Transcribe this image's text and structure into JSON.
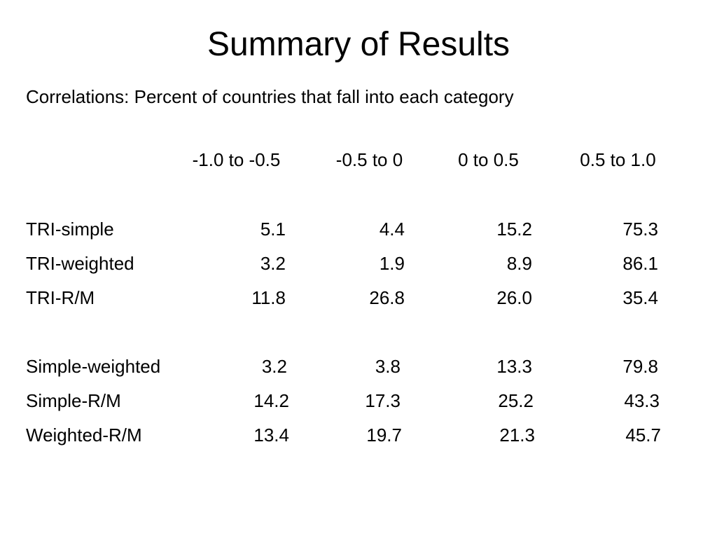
{
  "title": "Summary of Results",
  "subtitle": "Correlations: Percent of countries that fall into each category",
  "columns": [
    "-1.0 to -0.5",
    "-0.5 to 0",
    "0 to 0.5",
    "0.5 to 1.0"
  ],
  "groups": [
    {
      "rows": [
        {
          "label": "TRI-simple",
          "values": [
            "5.1",
            "4.4",
            "15.2",
            "75.3"
          ]
        },
        {
          "label": "TRI-weighted",
          "values": [
            "3.2",
            "1.9",
            "8.9",
            "86.1"
          ]
        },
        {
          "label": "TRI-R/M",
          "values": [
            "11.8",
            "26.8",
            "26.0",
            "35.4"
          ]
        }
      ]
    },
    {
      "rows": [
        {
          "label": "Simple-weighted",
          "values": [
            "3.2",
            "3.8",
            "13.3",
            "79.8"
          ]
        },
        {
          "label": "Simple-R/M",
          "values": [
            "14.2",
            "17.3",
            "25.2",
            "43.3"
          ]
        },
        {
          "label": "Weighted-R/M",
          "values": [
            "13.4",
            "19.7",
            "21.3",
            "45.7"
          ]
        }
      ]
    }
  ]
}
